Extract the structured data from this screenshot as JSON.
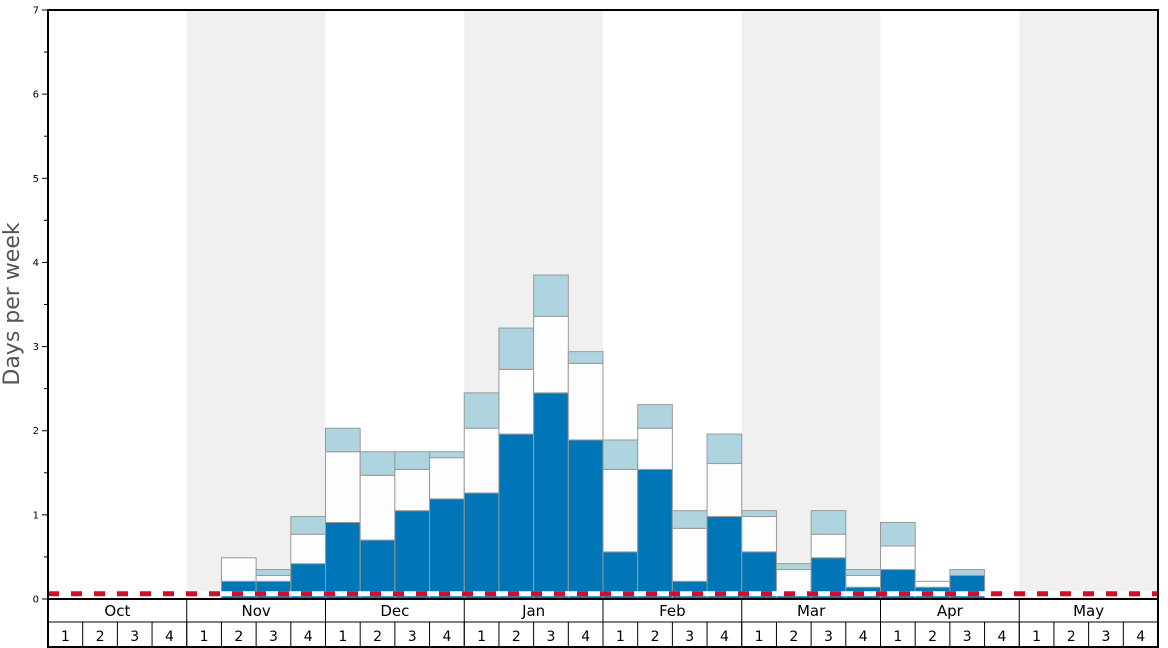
{
  "chart_data": {
    "type": "bar",
    "ylabel": "Days per week",
    "ylim": [
      0,
      7
    ],
    "yticks": [
      "0",
      "1",
      "2",
      "3",
      "4",
      "5",
      "6",
      "7"
    ],
    "months": [
      "Oct",
      "Nov",
      "Dec",
      "Jan",
      "Feb",
      "Mar",
      "Apr",
      "May"
    ],
    "weeks": [
      "1",
      "2",
      "3",
      "4"
    ],
    "stacked": true,
    "threshold": 0.05,
    "colors": {
      "dark": "#0075b8",
      "mid": "#fdfdfd",
      "light": "#aed4e0",
      "threshold": "#d0102a",
      "band": "#f0f0f0"
    },
    "series": [
      {
        "values": [
          0,
          0,
          0,
          0,
          0,
          0.21,
          0.21,
          0.42,
          0.91,
          0.7,
          1.05,
          1.19,
          1.26,
          1.96,
          2.45,
          1.89,
          0.56,
          1.54,
          0.21,
          0.98,
          0.56,
          0.07,
          0.49,
          0.14,
          0.35,
          0.14,
          0.28,
          0
        ]
      },
      {
        "values": [
          0,
          0,
          0,
          0,
          0,
          0.28,
          0.07,
          0.35,
          0.84,
          0.77,
          0.49,
          0.49,
          0.77,
          0.77,
          0.91,
          0.91,
          0.98,
          0.49,
          0.63,
          0.63,
          0.42,
          0.28,
          0.28,
          0.14,
          0.28,
          0.07,
          0,
          0
        ]
      },
      {
        "values": [
          0,
          0,
          0,
          0,
          0,
          0,
          0.07,
          0.21,
          0.28,
          0.28,
          0.21,
          0.07,
          0.42,
          0.49,
          0.49,
          0.14,
          0.35,
          0.28,
          0.21,
          0.35,
          0.07,
          0.07,
          0.28,
          0.07,
          0.28,
          0,
          0.07,
          0
        ]
      }
    ]
  }
}
